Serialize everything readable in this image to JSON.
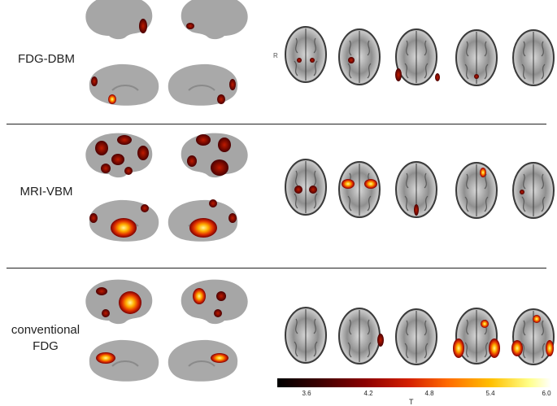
{
  "rows": [
    {
      "label": "FDG-DBM"
    },
    {
      "label": "MRI-VBM"
    },
    {
      "label": "conventional\nFDG"
    }
  ],
  "orientation_marker": "R",
  "colorbar": {
    "title": "T",
    "ticks": [
      "3.6",
      "4.2",
      "4.8",
      "5.4",
      "6.0"
    ],
    "range": [
      3.0,
      6.0
    ]
  }
}
